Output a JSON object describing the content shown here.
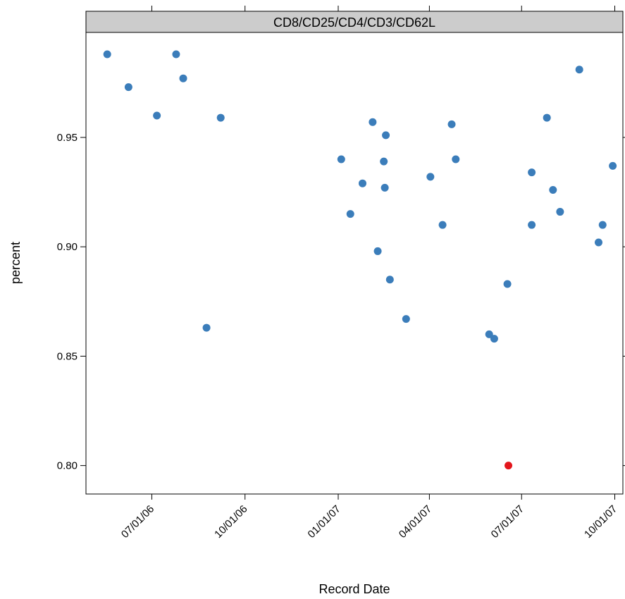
{
  "chart_data": {
    "type": "scatter",
    "panel_title": "CD8/CD25/CD4/CD3/CD62L",
    "xlabel": "Record Date",
    "ylabel": "percent",
    "x_ticks": [
      "07/01/06",
      "10/01/06",
      "01/01/07",
      "04/01/07",
      "07/01/07",
      "10/01/07"
    ],
    "y_ticks": [
      "0.80",
      "0.85",
      "0.90",
      "0.95"
    ],
    "ylim": [
      0.787,
      0.998
    ],
    "xlim": [
      "2006-04-27",
      "2007-10-09"
    ],
    "grid": false,
    "colors": {
      "default": "#3b7dba",
      "highlight": "#e3161c"
    },
    "points": [
      {
        "x": "2006-05-18",
        "y": 0.988
      },
      {
        "x": "2006-06-08",
        "y": 0.973
      },
      {
        "x": "2006-07-06",
        "y": 0.96
      },
      {
        "x": "2006-07-25",
        "y": 0.988
      },
      {
        "x": "2006-08-01",
        "y": 0.977
      },
      {
        "x": "2006-08-24",
        "y": 0.863
      },
      {
        "x": "2006-09-07",
        "y": 0.959
      },
      {
        "x": "2007-01-04",
        "y": 0.94
      },
      {
        "x": "2007-01-13",
        "y": 0.915
      },
      {
        "x": "2007-01-25",
        "y": 0.929
      },
      {
        "x": "2007-02-04",
        "y": 0.957
      },
      {
        "x": "2007-02-09",
        "y": 0.898
      },
      {
        "x": "2007-02-15",
        "y": 0.939
      },
      {
        "x": "2007-02-16",
        "y": 0.927
      },
      {
        "x": "2007-02-17",
        "y": 0.951
      },
      {
        "x": "2007-02-21",
        "y": 0.885
      },
      {
        "x": "2007-03-09",
        "y": 0.867
      },
      {
        "x": "2007-04-02",
        "y": 0.932
      },
      {
        "x": "2007-04-14",
        "y": 0.91
      },
      {
        "x": "2007-04-23",
        "y": 0.956
      },
      {
        "x": "2007-04-27",
        "y": 0.94
      },
      {
        "x": "2007-05-30",
        "y": 0.86
      },
      {
        "x": "2007-06-04",
        "y": 0.858
      },
      {
        "x": "2007-06-17",
        "y": 0.883
      },
      {
        "x": "2007-06-18",
        "y": 0.8,
        "highlight": true
      },
      {
        "x": "2007-07-11",
        "y": 0.934
      },
      {
        "x": "2007-07-11",
        "y": 0.91
      },
      {
        "x": "2007-07-26",
        "y": 0.959
      },
      {
        "x": "2007-08-01",
        "y": 0.926
      },
      {
        "x": "2007-08-08",
        "y": 0.916
      },
      {
        "x": "2007-08-27",
        "y": 0.981
      },
      {
        "x": "2007-09-15",
        "y": 0.902
      },
      {
        "x": "2007-09-19",
        "y": 0.91
      },
      {
        "x": "2007-09-29",
        "y": 0.937
      }
    ]
  }
}
